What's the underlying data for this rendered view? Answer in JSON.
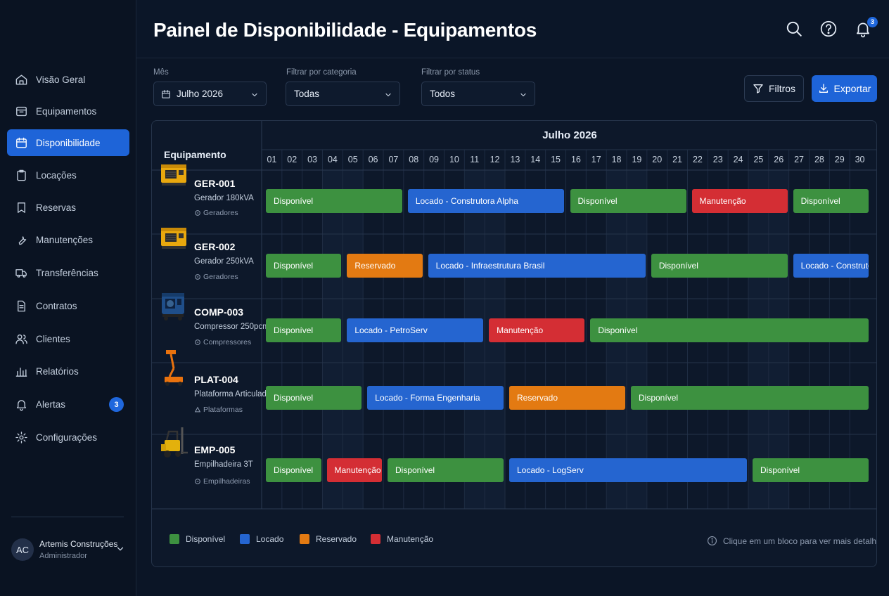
{
  "title": "Painel de Disponibilidade - Equipamentos",
  "notifications_count": "3",
  "sidebar": {
    "items": [
      {
        "label": "Visão Geral",
        "icon": "home-icon",
        "active": false
      },
      {
        "label": "Equipamentos",
        "icon": "box-icon",
        "active": false
      },
      {
        "label": "Disponibilidade",
        "icon": "calendar-icon",
        "active": true
      },
      {
        "label": "Locações",
        "icon": "clipboard-icon",
        "active": false
      },
      {
        "label": "Reservas",
        "icon": "bookmark-icon",
        "active": false
      },
      {
        "label": "Manutenções",
        "icon": "wrench-icon",
        "active": false
      },
      {
        "label": "Transferências",
        "icon": "truck-icon",
        "active": false
      },
      {
        "label": "Contratos",
        "icon": "document-icon",
        "active": false
      },
      {
        "label": "Clientes",
        "icon": "users-icon",
        "active": false
      },
      {
        "label": "Relatórios",
        "icon": "bar-chart-icon",
        "active": false
      },
      {
        "label": "Alertas",
        "icon": "bell-icon",
        "active": false,
        "badge": "3"
      },
      {
        "label": "Configurações",
        "icon": "gear-icon",
        "active": false
      }
    ],
    "user": {
      "initials": "AC",
      "name": "Artemis Construções",
      "role": "Administrador"
    }
  },
  "filters": {
    "month": {
      "label": "Mês",
      "value": "Julho 2026"
    },
    "category": {
      "label": "Filtrar por categoria",
      "value": "Todas"
    },
    "status": {
      "label": "Filtrar por status",
      "value": "Todos"
    },
    "filters_button": "Filtros",
    "export_button": "Exportar"
  },
  "calendar": {
    "equipment_header": "Equipamento",
    "month_header": "Julho 2026",
    "days": [
      "01",
      "02",
      "03",
      "04",
      "05",
      "06",
      "07",
      "08",
      "09",
      "10",
      "11",
      "12",
      "13",
      "14",
      "15",
      "16",
      "17",
      "18",
      "19",
      "20",
      "21",
      "22",
      "23",
      "24",
      "25",
      "26",
      "27",
      "28",
      "29",
      "30"
    ],
    "equipment": [
      {
        "code": "GER-001",
        "name": "Gerador 180kVA",
        "category": "Geradores",
        "kind": "generator",
        "bookings": [
          {
            "label": "Disponível",
            "status": "disponivel",
            "start": 1,
            "end": 7
          },
          {
            "label": "Locado - Construtora Alpha",
            "status": "locado",
            "start": 8,
            "end": 15
          },
          {
            "label": "Disponível",
            "status": "disponivel",
            "start": 16,
            "end": 21
          },
          {
            "label": "Manutenção",
            "status": "manutencao",
            "start": 22,
            "end": 26
          },
          {
            "label": "Disponível",
            "status": "disponivel",
            "start": 27,
            "end": 30
          }
        ]
      },
      {
        "code": "GER-002",
        "name": "Gerador 250kVA",
        "category": "Geradores",
        "kind": "generator",
        "bookings": [
          {
            "label": "Disponível",
            "status": "disponivel",
            "start": 1,
            "end": 4
          },
          {
            "label": "Reservado",
            "status": "reservado",
            "start": 5,
            "end": 8
          },
          {
            "label": "Locado - Infraestrutura Brasil",
            "status": "locado",
            "start": 9,
            "end": 19
          },
          {
            "label": "Disponível",
            "status": "disponivel",
            "start": 20,
            "end": 26
          },
          {
            "label": "Locado - Construtora Delta",
            "status": "locado",
            "start": 27,
            "end": 30
          }
        ]
      },
      {
        "code": "COMP-003",
        "name": "Compressor 250pcm",
        "category": "Compressores",
        "kind": "compressor",
        "bookings": [
          {
            "label": "Disponível",
            "status": "disponivel",
            "start": 1,
            "end": 4
          },
          {
            "label": "Locado - PetroServ",
            "status": "locado",
            "start": 5,
            "end": 11
          },
          {
            "label": "Manutenção",
            "status": "manutencao",
            "start": 12,
            "end": 16
          },
          {
            "label": "Disponível",
            "status": "disponivel",
            "start": 17,
            "end": 30
          }
        ]
      },
      {
        "code": "PLAT-004",
        "name": "Plataforma Articulada",
        "category": "Plataformas",
        "kind": "platform",
        "bookings": [
          {
            "label": "Disponível",
            "status": "disponivel",
            "start": 1,
            "end": 5
          },
          {
            "label": "Locado - Forma Engenharia",
            "status": "locado",
            "start": 6,
            "end": 12
          },
          {
            "label": "Reservado",
            "status": "reservado",
            "start": 13,
            "end": 18
          },
          {
            "label": "Disponível",
            "status": "disponivel",
            "start": 19,
            "end": 30
          }
        ]
      },
      {
        "code": "EMP-005",
        "name": "Empilhadeira 3T",
        "category": "Empilhadeiras",
        "kind": "forklift",
        "bookings": [
          {
            "label": "Disponível",
            "status": "disponivel",
            "start": 1,
            "end": 3
          },
          {
            "label": "Manutenção",
            "status": "manutencao",
            "start": 4,
            "end": 6
          },
          {
            "label": "Disponível",
            "status": "disponivel",
            "start": 7,
            "end": 12
          },
          {
            "label": "Locado - LogServ",
            "status": "locado",
            "start": 13,
            "end": 24
          },
          {
            "label": "Disponível",
            "status": "disponivel",
            "start": 25,
            "end": 30
          }
        ]
      }
    ]
  },
  "legend": [
    {
      "label": "Disponível",
      "color": "#3d9140"
    },
    {
      "label": "Locado",
      "color": "#2565d0"
    },
    {
      "label": "Reservado",
      "color": "#e37a12"
    },
    {
      "label": "Manutenção",
      "color": "#d42e34"
    }
  ],
  "hint": "Clique em um bloco para ver mais detalhes",
  "status_colors": {
    "disponivel": "#3d9140",
    "locado": "#2565d0",
    "reservado": "#e37a12",
    "manutencao": "#d42e34"
  }
}
